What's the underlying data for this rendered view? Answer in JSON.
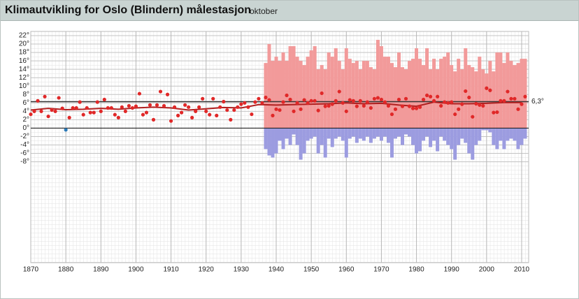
{
  "chart_data": {
    "type": "climate",
    "title": "Klimautvikling for Oslo (Blindern) målestasjon",
    "subtitle": "oktober",
    "xlim": [
      1870,
      2012
    ],
    "xticks": [
      1870,
      1880,
      1890,
      1900,
      1910,
      1920,
      1930,
      1940,
      1950,
      1960,
      1970,
      1980,
      1990,
      2000,
      2010
    ],
    "ylim": [
      -32,
      23
    ],
    "yticks": [
      {
        "value": 22,
        "label": "22°"
      },
      {
        "value": 20,
        "label": "20°"
      },
      {
        "value": 18,
        "label": "18°"
      },
      {
        "value": 16,
        "label": "16°"
      },
      {
        "value": 14,
        "label": "14°"
      },
      {
        "value": 12,
        "label": "12°"
      },
      {
        "value": 10,
        "label": "10°"
      },
      {
        "value": 8,
        "label": "8°"
      },
      {
        "value": 6,
        "label": "6°"
      },
      {
        "value": 4,
        "label": "4°"
      },
      {
        "value": 2,
        "label": "2°"
      },
      {
        "value": 0,
        "label": "0°"
      },
      {
        "value": -2,
        "label": "-2°"
      },
      {
        "value": -4,
        "label": "-4°"
      },
      {
        "value": -6,
        "label": "-6°"
      },
      {
        "value": -8,
        "label": "-8°"
      }
    ],
    "grid": true,
    "reference": {
      "value": 6.3,
      "label": "6,3°",
      "color": "#333333"
    },
    "series": [
      {
        "kind": "bar",
        "color": "#f29a9a",
        "x": [
          1937,
          1938,
          1939,
          1940,
          1941,
          1942,
          1943,
          1944,
          1945,
          1946,
          1947,
          1948,
          1949,
          1950,
          1951,
          1952,
          1953,
          1954,
          1955,
          1956,
          1957,
          1958,
          1959,
          1960,
          1961,
          1962,
          1963,
          1964,
          1965,
          1966,
          1967,
          1968,
          1969,
          1970,
          1971,
          1972,
          1973,
          1974,
          1975,
          1976,
          1977,
          1978,
          1979,
          1980,
          1981,
          1982,
          1983,
          1984,
          1985,
          1986,
          1987,
          1988,
          1989,
          1990,
          1991,
          1992,
          1993,
          1994,
          1995,
          1996,
          1997,
          1998,
          1999,
          2000,
          2001,
          2002,
          2003,
          2004,
          2005,
          2006,
          2007,
          2008,
          2009,
          2010,
          2011
        ],
        "values": [
          15.5,
          20,
          16,
          17,
          16,
          18,
          16,
          19.5,
          19.5,
          17,
          16,
          15,
          17,
          18.5,
          19.5,
          14,
          15,
          14,
          18,
          17,
          19,
          16,
          14,
          19,
          16.5,
          15.5,
          16,
          14,
          16,
          16,
          14.5,
          14,
          21,
          19.5,
          17,
          17,
          15.5,
          14.5,
          18,
          14.5,
          14,
          16,
          16.5,
          19,
          16.5,
          15,
          19,
          14,
          16.5,
          14,
          16.5,
          17,
          18,
          15,
          13.5,
          16.5,
          14,
          19,
          15,
          14.5,
          13.5,
          17,
          14,
          13,
          16,
          13.5,
          18,
          18,
          15.5,
          18,
          16,
          15,
          15.5,
          16.5,
          16.5
        ]
      },
      {
        "kind": "bar",
        "color": "#9c9ce0",
        "x": [
          1937,
          1938,
          1939,
          1940,
          1941,
          1942,
          1943,
          1944,
          1945,
          1946,
          1947,
          1948,
          1949,
          1950,
          1951,
          1952,
          1953,
          1954,
          1955,
          1956,
          1957,
          1958,
          1959,
          1960,
          1961,
          1962,
          1963,
          1964,
          1965,
          1966,
          1967,
          1968,
          1969,
          1970,
          1971,
          1972,
          1973,
          1974,
          1975,
          1976,
          1977,
          1978,
          1979,
          1980,
          1981,
          1982,
          1983,
          1984,
          1985,
          1986,
          1987,
          1988,
          1989,
          1990,
          1991,
          1992,
          1993,
          1994,
          1995,
          1996,
          1997,
          1998,
          1999,
          2000,
          2001,
          2002,
          2003,
          2004,
          2005,
          2006,
          2007,
          2008,
          2009,
          2010,
          2011
        ],
        "values": [
          -5,
          -6.5,
          -7,
          -6,
          -3,
          -5,
          -2.5,
          -4,
          -1.5,
          -4,
          -7.5,
          -6,
          -3,
          -2.5,
          -2,
          -6,
          -4,
          -7,
          -2.5,
          -4.5,
          -2.5,
          -2,
          -3,
          -7,
          -2.5,
          -2,
          -3.5,
          -2.5,
          -3,
          -2,
          -3.5,
          -2.5,
          -2,
          -3,
          -2,
          -3.5,
          -7,
          -2.5,
          -2,
          -4,
          -1.5,
          -2,
          -4,
          -6,
          -5.5,
          -3,
          -2,
          -4.5,
          -3,
          -5.5,
          -2,
          -3,
          -4,
          -5,
          -7.5,
          -4,
          -2.5,
          -3.5,
          -6,
          -7.5,
          -4,
          -3,
          -0.5,
          -0.5,
          -1,
          -4,
          -5,
          -3,
          -5,
          -3,
          -2.5,
          -3,
          -5,
          -4,
          -2.5
        ]
      },
      {
        "kind": "line",
        "color": "#b02020",
        "x": [
          1870,
          1875,
          1880,
          1885,
          1890,
          1895,
          1900,
          1905,
          1910,
          1915,
          1920,
          1925,
          1930,
          1935,
          1940,
          1945,
          1950,
          1955,
          1960,
          1965,
          1970,
          1975,
          1980,
          1985,
          1990,
          1995,
          2000,
          2005,
          2010
        ],
        "values": [
          4.3,
          4.7,
          4.4,
          4.5,
          4.7,
          4.5,
          4.8,
          5,
          4.8,
          4.3,
          4.6,
          4.9,
          4.8,
          5.6,
          5.5,
          5.6,
          5.7,
          5.8,
          6,
          5.8,
          5.9,
          5.5,
          5.2,
          6.2,
          5.8,
          5.8,
          5.9,
          6.1,
          6.1
        ]
      },
      {
        "kind": "dots",
        "color": "#e02828",
        "negative_color": "#2a7ab8",
        "x": [
          1870,
          1871,
          1872,
          1873,
          1874,
          1875,
          1876,
          1877,
          1878,
          1879,
          1880,
          1881,
          1882,
          1883,
          1884,
          1885,
          1886,
          1887,
          1888,
          1889,
          1890,
          1891,
          1892,
          1893,
          1894,
          1895,
          1896,
          1897,
          1898,
          1899,
          1900,
          1901,
          1902,
          1903,
          1904,
          1905,
          1906,
          1907,
          1908,
          1909,
          1910,
          1911,
          1912,
          1913,
          1914,
          1915,
          1916,
          1917,
          1918,
          1919,
          1920,
          1921,
          1922,
          1923,
          1924,
          1925,
          1926,
          1927,
          1928,
          1929,
          1930,
          1931,
          1932,
          1933,
          1934,
          1935,
          1936,
          1937,
          1938,
          1939,
          1940,
          1941,
          1942,
          1943,
          1944,
          1945,
          1946,
          1947,
          1948,
          1949,
          1950,
          1951,
          1952,
          1953,
          1954,
          1955,
          1956,
          1957,
          1958,
          1959,
          1960,
          1961,
          1962,
          1963,
          1964,
          1965,
          1966,
          1967,
          1968,
          1969,
          1970,
          1971,
          1972,
          1973,
          1974,
          1975,
          1976,
          1977,
          1978,
          1979,
          1980,
          1981,
          1982,
          1983,
          1984,
          1985,
          1986,
          1987,
          1988,
          1989,
          1990,
          1991,
          1992,
          1993,
          1994,
          1995,
          1996,
          1997,
          1998,
          1999,
          2000,
          2001,
          2002,
          2003,
          2004,
          2005,
          2006,
          2007,
          2008,
          2009,
          2010,
          2011
        ],
        "values": [
          3.3,
          4,
          6.5,
          4,
          7.5,
          2.8,
          4.3,
          4,
          7.2,
          4.7,
          -0.4,
          2.5,
          4.8,
          4.8,
          6.2,
          3.2,
          4.8,
          3.7,
          3.7,
          6.2,
          4,
          6.8,
          4.8,
          4.8,
          3.2,
          2.5,
          5,
          4,
          5.3,
          4.8,
          5.2,
          8.2,
          3.2,
          3.7,
          5.5,
          2,
          5.5,
          8.7,
          5.3,
          8,
          1.7,
          5,
          3,
          3.7,
          5.5,
          5,
          2.5,
          4,
          5,
          7,
          4,
          3.2,
          7,
          3,
          5,
          6.3,
          4.3,
          2,
          4.3,
          5,
          5.7,
          6,
          5,
          3.3,
          6.2,
          7,
          6,
          7.3,
          6.7,
          3,
          4.5,
          4.3,
          6.2,
          7.8,
          6.8,
          4,
          6,
          4.5,
          6.7,
          6,
          6.5,
          6.5,
          4.2,
          8.3,
          5.2,
          5.3,
          5.7,
          6.5,
          8.7,
          6,
          4,
          6.7,
          6.5,
          5.2,
          6.5,
          5.3,
          6.2,
          4.8,
          7,
          7.2,
          6.8,
          6.2,
          5.3,
          3.3,
          4.5,
          6.8,
          5.2,
          7,
          5.2,
          4.7,
          4.7,
          5,
          6.8,
          7.8,
          7.5,
          6.5,
          7.5,
          5.3,
          6.2,
          6,
          6.2,
          3.3,
          4.5,
          5.7,
          8.8,
          7.3,
          2.7,
          5.8,
          5.5,
          5.3,
          9.5,
          9,
          3.7,
          3.8,
          6.5,
          6.5,
          8.7,
          7,
          7,
          4.5,
          5.7,
          7.5
        ]
      }
    ]
  }
}
